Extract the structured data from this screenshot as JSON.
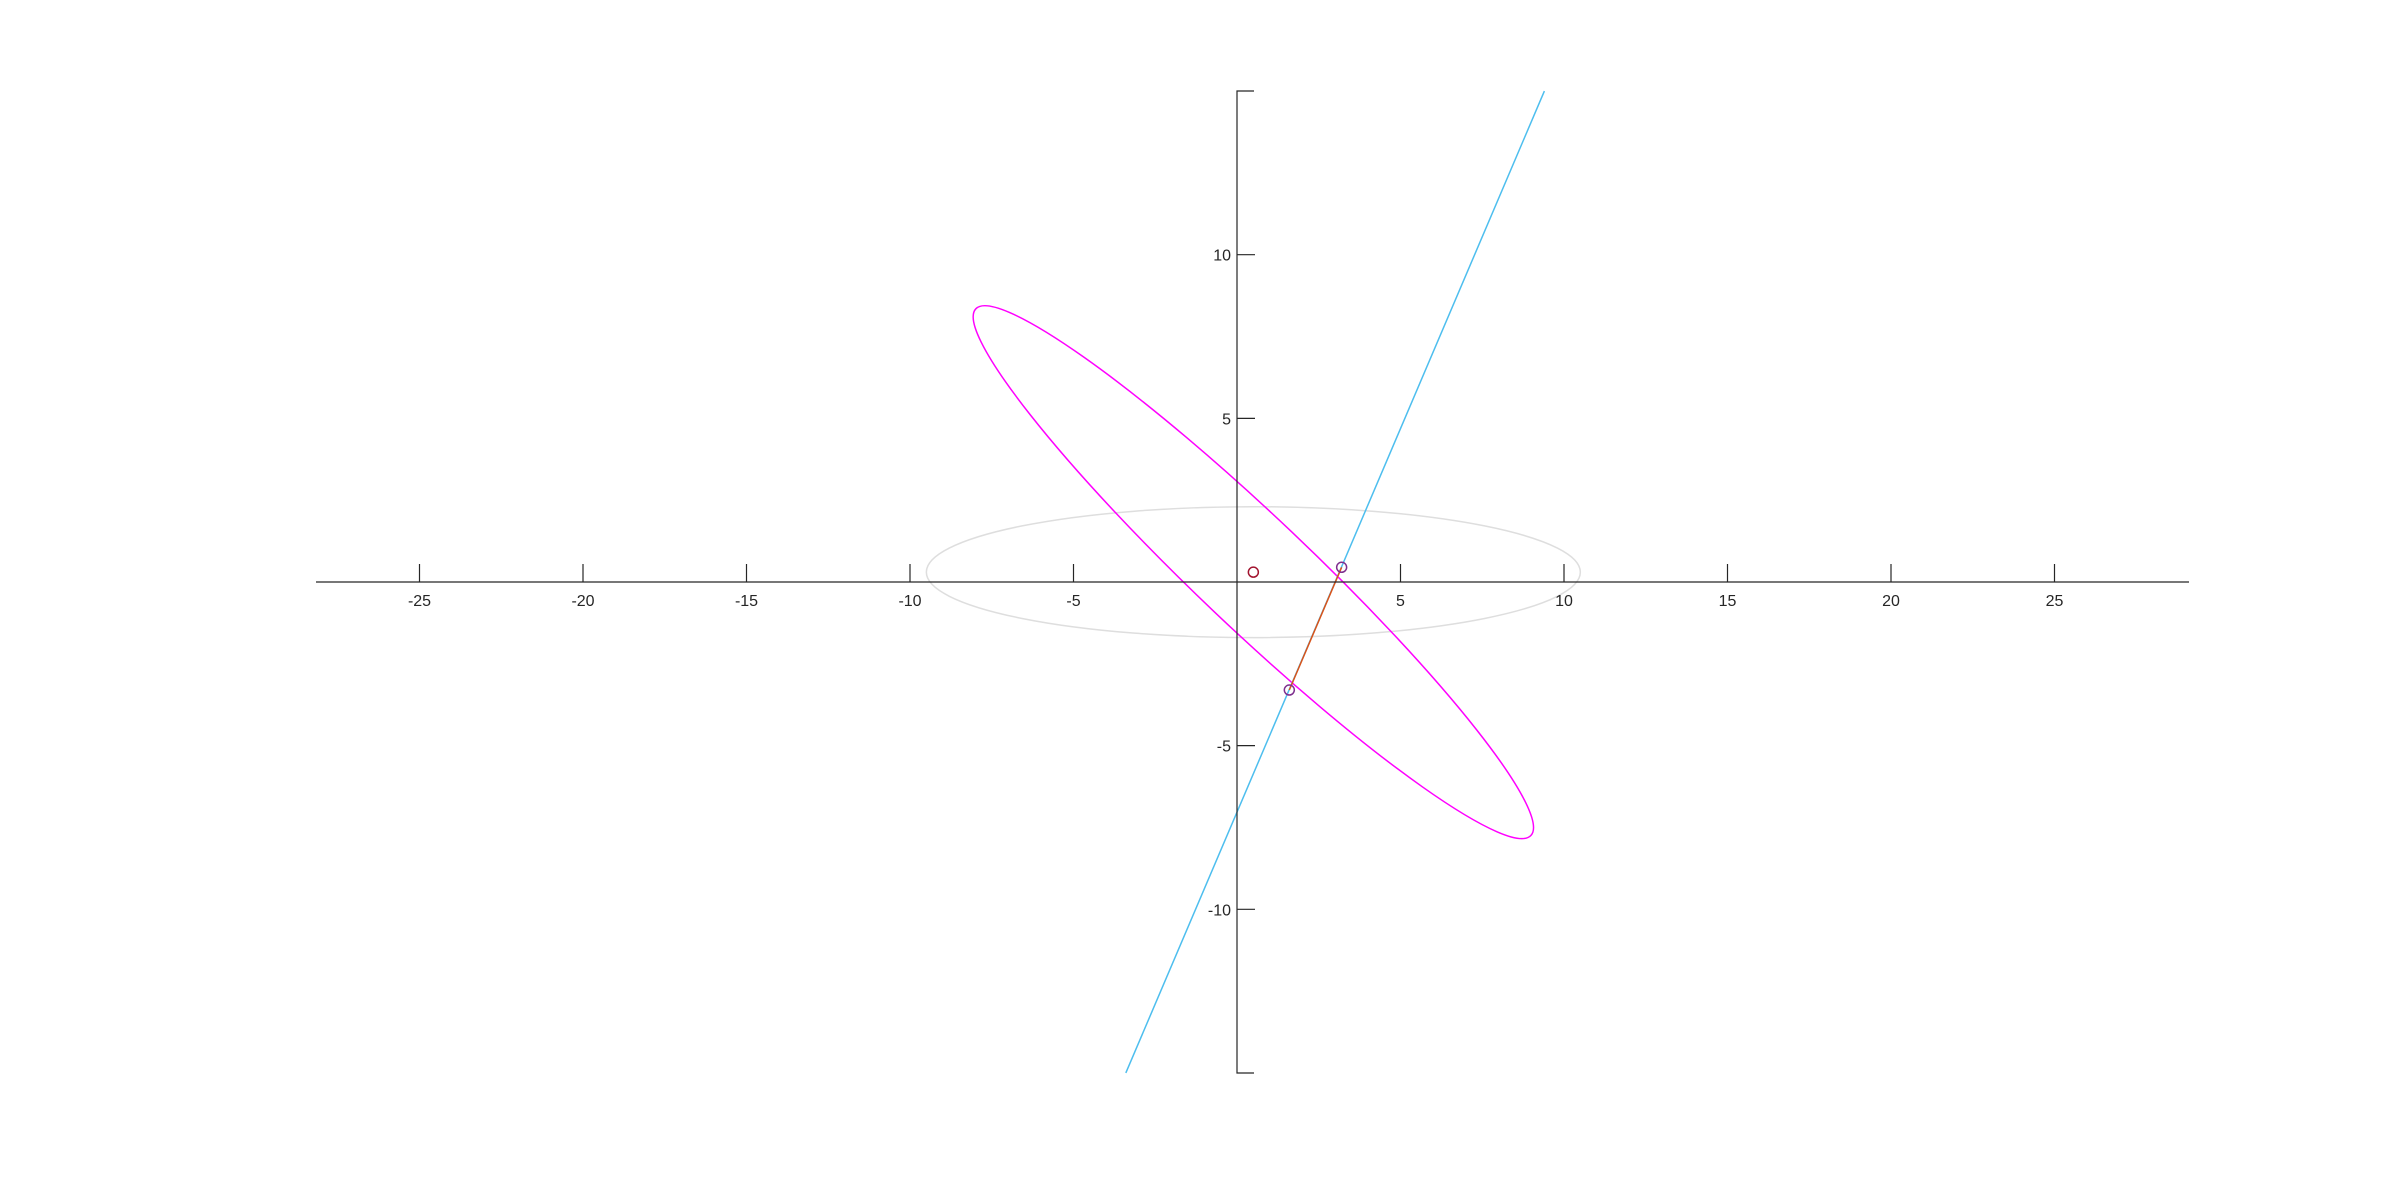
{
  "chart_data": {
    "type": "scatter",
    "title": "",
    "xlabel": "",
    "ylabel": "",
    "xlim": [
      -28,
      29
    ],
    "ylim": [
      -15,
      15
    ],
    "xticks": [
      -25,
      -20,
      -15,
      -10,
      -5,
      5,
      10,
      15,
      20,
      25
    ],
    "yticks": [
      -10,
      -5,
      5,
      10
    ],
    "xtick_labels": [
      "-25",
      "-20",
      "-15",
      "-10",
      "-5",
      "5",
      "10",
      "15",
      "20",
      "25"
    ],
    "ytick_labels": [
      "-10",
      "-5",
      "5",
      "10"
    ],
    "grid": false,
    "legend": "none",
    "series": [
      {
        "kind": "ellipse",
        "center": [
          0.5,
          0.3
        ],
        "semi_axes": [
          10,
          2
        ],
        "rotation_deg": 0,
        "color": "#dedede"
      },
      {
        "kind": "ellipse",
        "center": [
          0.5,
          0.3
        ],
        "semi_axes": [
          11.7,
          1.7
        ],
        "rotation_deg": -43.5,
        "color": "#ff00ff"
      },
      {
        "kind": "line",
        "x": [
          -3.4,
          9.4
        ],
        "y": [
          -15,
          15
        ],
        "color": "#4dbeee"
      },
      {
        "kind": "segment",
        "x": [
          1.6,
          3.2
        ],
        "y": [
          -3.3,
          0.45
        ],
        "color": "#d95319"
      },
      {
        "kind": "point",
        "x": [
          0.5
        ],
        "y": [
          0.3
        ],
        "color": "#a2142f"
      },
      {
        "kind": "point",
        "x": [
          3.2,
          1.6
        ],
        "y": [
          0.45,
          -3.3
        ],
        "color": "#7e2f8e"
      }
    ]
  }
}
